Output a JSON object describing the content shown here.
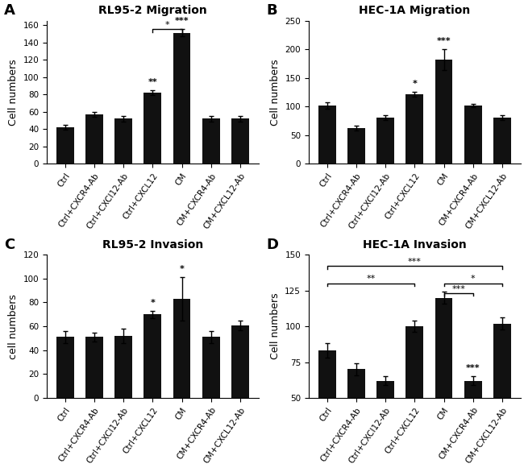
{
  "chart_data": [
    {
      "type": "bar",
      "panel_label": "A",
      "title": "RL95-2 Migration",
      "ylabel": "Cell numbers",
      "categories": [
        "Ctrl",
        "Ctrl+CXCR4-Ab",
        "Ctrl+CXCl12-Ab",
        "Ctrl+CXCL12",
        "CM",
        "CM+CXCR4-Ab",
        "CM+CXCL12-Ab"
      ],
      "values": [
        42,
        57,
        52,
        82,
        151,
        52,
        52
      ],
      "errors": [
        3,
        3,
        3,
        3,
        4,
        3,
        3
      ],
      "significance": [
        null,
        null,
        null,
        "**",
        "***",
        null,
        null
      ],
      "brackets": [
        {
          "from": "Ctrl+CXCL12",
          "to": "CM",
          "y": 155,
          "label": "*"
        }
      ],
      "ylim": [
        0,
        165
      ],
      "yticks": [
        0,
        20,
        40,
        60,
        80,
        100,
        120,
        140,
        160
      ],
      "color": "#111111",
      "grid": false
    },
    {
      "type": "bar",
      "panel_label": "B",
      "title": "HEC-1A Migration",
      "ylabel": "Cell numbers",
      "categories": [
        "Ctrl",
        "Ctrl+CXCR4-Ab",
        "Ctrl+CXCl12-Ab",
        "Ctrl+CXCL12",
        "CM",
        "CM+CXCR4-Ab",
        "CM+CXCL12-Ab"
      ],
      "values": [
        102,
        63,
        81,
        122,
        182,
        102,
        81
      ],
      "errors": [
        5,
        4,
        4,
        4,
        18,
        3,
        4
      ],
      "significance": [
        null,
        null,
        null,
        "*",
        "***",
        null,
        null
      ],
      "ylim": [
        0,
        250
      ],
      "yticks": [
        0,
        50,
        100,
        150,
        200,
        250
      ],
      "color": "#111111",
      "grid": false
    },
    {
      "type": "bar",
      "panel_label": "C",
      "title": "RL95-2 Invasion",
      "ylabel": "cell numbers",
      "categories": [
        "Ctrl",
        "Ctrl+CXCR4-Ab",
        "Ctrl+CXCl12-Ab",
        "Ctrl+CXCL12",
        "CM",
        "CM+CXCR4-Ab",
        "CM+CXCL12-Ab"
      ],
      "values": [
        51,
        51,
        52,
        70,
        83,
        51,
        61
      ],
      "errors": [
        5,
        4,
        6,
        3,
        18,
        5,
        4
      ],
      "significance": [
        null,
        null,
        null,
        "*",
        "*",
        null,
        null
      ],
      "ylim": [
        0,
        120
      ],
      "yticks": [
        0,
        20,
        40,
        60,
        80,
        100,
        120
      ],
      "color": "#111111",
      "grid": false
    },
    {
      "type": "bar",
      "panel_label": "D",
      "title": "HEC-1A Invasion",
      "ylabel": "Cell numbers",
      "categories": [
        "Ctrl",
        "Ctrl+CXCR4-Ab",
        "Ctrl+CXCl12-Ab",
        "Ctrl+CXCL12",
        "CM",
        "CM+CXCR4-Ab",
        "CM+CXCL12-Ab"
      ],
      "values": [
        83,
        70,
        62,
        100,
        120,
        62,
        102
      ],
      "errors": [
        5,
        4,
        3,
        4,
        4,
        3,
        4
      ],
      "significance": [
        null,
        null,
        null,
        null,
        null,
        "***",
        null
      ],
      "brackets": [
        {
          "from": "Ctrl",
          "to": "Ctrl+CXCL12",
          "y": 130,
          "label": "**"
        },
        {
          "from": "Ctrl",
          "to": "CM+CXCL12-Ab",
          "y": 142,
          "label": "***"
        },
        {
          "from": "CM",
          "to": "CM+CXCL12-Ab",
          "y": 130,
          "label": "*"
        },
        {
          "from": "CM",
          "to": "CM+CXCR4-Ab",
          "y": 123,
          "label": "***"
        }
      ],
      "ylim": [
        50,
        150
      ],
      "yticks": [
        50,
        75,
        100,
        125,
        150
      ],
      "color": "#111111",
      "grid": false
    }
  ]
}
